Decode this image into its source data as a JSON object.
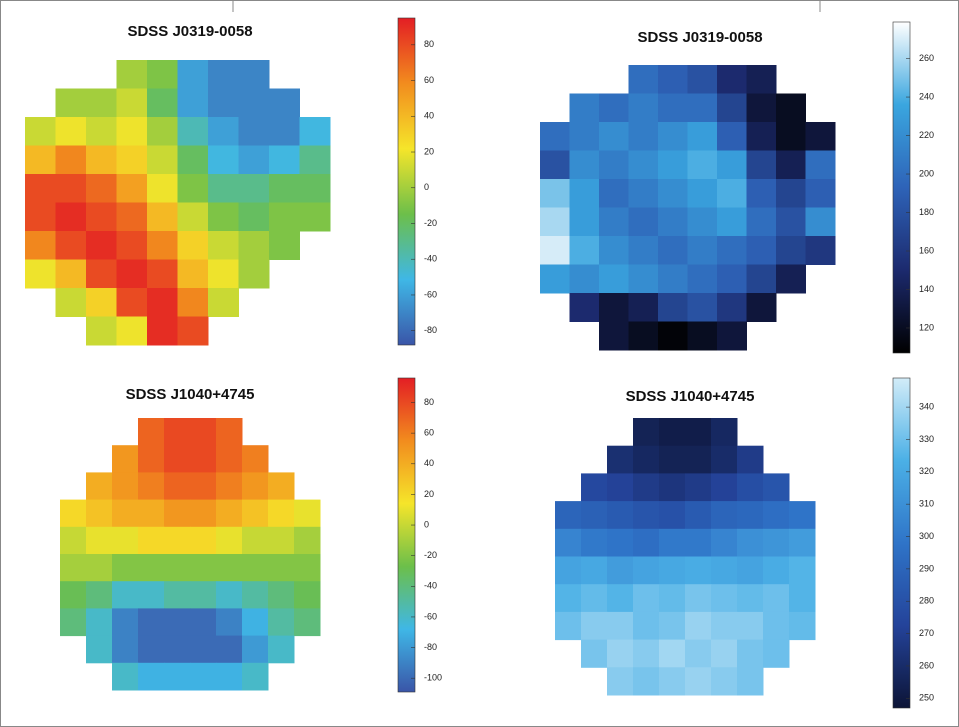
{
  "chart_data": [
    {
      "type": "heatmap",
      "title": "SDSS J0319-0058",
      "colormap": [
        "#3a55a8",
        "#3fb7e6",
        "#6cbf4a",
        "#f5e52a",
        "#f28c1e",
        "#e31e24"
      ],
      "clim": [
        -88,
        95
      ],
      "cticks": [
        80,
        60,
        40,
        20,
        0,
        -20,
        -40,
        -60,
        -80
      ],
      "z": [
        [
          null,
          null,
          null,
          0,
          -10,
          -60,
          -70,
          -70,
          null,
          null
        ],
        [
          null,
          0,
          0,
          10,
          -20,
          -60,
          -70,
          -70,
          -70,
          null
        ],
        [
          10,
          20,
          10,
          20,
          0,
          -40,
          -60,
          -70,
          -70,
          -50
        ],
        [
          40,
          60,
          40,
          30,
          10,
          -20,
          -50,
          -60,
          -50,
          -30
        ],
        [
          80,
          80,
          70,
          50,
          20,
          -10,
          -30,
          -30,
          -20,
          -20
        ],
        [
          80,
          90,
          80,
          70,
          40,
          10,
          -10,
          -20,
          -10,
          -10
        ],
        [
          60,
          80,
          90,
          80,
          60,
          30,
          10,
          0,
          -10,
          null
        ],
        [
          20,
          40,
          80,
          90,
          80,
          40,
          20,
          0,
          null,
          null
        ],
        [
          null,
          10,
          30,
          80,
          90,
          60,
          10,
          null,
          null,
          null
        ],
        [
          null,
          null,
          10,
          20,
          90,
          80,
          null,
          null,
          null,
          null
        ]
      ]
    },
    {
      "type": "heatmap",
      "title": "SDSS J0319-0058",
      "colormap": [
        "#000000",
        "#1c2a6e",
        "#2e63b8",
        "#3aa6df",
        "#ffffff"
      ],
      "clim": [
        107,
        279
      ],
      "cticks": [
        260,
        240,
        220,
        200,
        180,
        160,
        140,
        120
      ],
      "z": [
        [
          null,
          null,
          null,
          200,
          190,
          180,
          150,
          140,
          null,
          null
        ],
        [
          null,
          210,
          200,
          210,
          200,
          200,
          170,
          130,
          120,
          null
        ],
        [
          200,
          210,
          220,
          210,
          220,
          230,
          190,
          140,
          120,
          130
        ],
        [
          180,
          220,
          210,
          220,
          230,
          240,
          230,
          170,
          140,
          200
        ],
        [
          250,
          230,
          200,
          210,
          220,
          230,
          240,
          190,
          170,
          190
        ],
        [
          260,
          230,
          210,
          200,
          210,
          220,
          230,
          200,
          180,
          220
        ],
        [
          270,
          240,
          220,
          210,
          200,
          210,
          200,
          190,
          170,
          160
        ],
        [
          230,
          220,
          230,
          220,
          210,
          200,
          190,
          170,
          140,
          null
        ],
        [
          null,
          150,
          130,
          140,
          170,
          180,
          160,
          130,
          null,
          null
        ],
        [
          null,
          null,
          130,
          120,
          110,
          120,
          130,
          null,
          null,
          null
        ]
      ]
    },
    {
      "type": "heatmap",
      "title": "SDSS J1040+4745",
      "colormap": [
        "#3a55a8",
        "#3fb7e6",
        "#6cbf4a",
        "#f5e52a",
        "#f28c1e",
        "#e31e24"
      ],
      "clim": [
        -109,
        96
      ],
      "cticks": [
        80,
        60,
        40,
        20,
        0,
        -20,
        -40,
        -60,
        -80,
        -100
      ],
      "z": [
        [
          null,
          null,
          null,
          70,
          80,
          80,
          70,
          null,
          null,
          null
        ],
        [
          null,
          null,
          50,
          70,
          80,
          80,
          70,
          60,
          null,
          null
        ],
        [
          null,
          40,
          50,
          60,
          70,
          70,
          60,
          50,
          40,
          null
        ],
        [
          20,
          30,
          40,
          40,
          50,
          50,
          40,
          30,
          20,
          10
        ],
        [
          0,
          10,
          10,
          20,
          20,
          20,
          10,
          0,
          0,
          -10
        ],
        [
          -10,
          -10,
          -20,
          -20,
          -20,
          -20,
          -20,
          -20,
          -20,
          -20
        ],
        [
          -30,
          -40,
          -60,
          -60,
          -50,
          -50,
          -60,
          -50,
          -40,
          -30
        ],
        [
          -40,
          -60,
          -90,
          -100,
          -100,
          -100,
          -90,
          -70,
          -50,
          -40
        ],
        [
          null,
          -60,
          -90,
          -100,
          -100,
          -100,
          -100,
          -80,
          -60,
          null
        ],
        [
          null,
          null,
          -60,
          -70,
          -70,
          -70,
          -70,
          -60,
          null,
          null
        ]
      ]
    },
    {
      "type": "heatmap",
      "title": "SDSS J1040+4745",
      "colormap": [
        "#0c1436",
        "#24439a",
        "#2f74c8",
        "#4bb0e6",
        "#d2ecf8"
      ],
      "clim": [
        247,
        349
      ],
      "cticks": [
        340,
        330,
        320,
        310,
        300,
        290,
        280,
        270,
        260,
        250
      ],
      "z": [
        [
          null,
          null,
          null,
          255,
          252,
          252,
          258,
          null,
          null,
          null
        ],
        [
          null,
          null,
          262,
          258,
          255,
          255,
          260,
          268,
          null,
          null
        ],
        [
          null,
          275,
          272,
          268,
          265,
          268,
          272,
          278,
          282,
          null
        ],
        [
          290,
          288,
          285,
          282,
          280,
          285,
          290,
          292,
          295,
          298
        ],
        [
          305,
          300,
          298,
          295,
          300,
          300,
          305,
          310,
          312,
          315
        ],
        [
          318,
          320,
          315,
          318,
          320,
          322,
          320,
          318,
          322,
          325
        ],
        [
          325,
          328,
          325,
          330,
          328,
          332,
          330,
          328,
          330,
          325
        ],
        [
          330,
          335,
          335,
          330,
          332,
          338,
          335,
          335,
          330,
          328
        ],
        [
          null,
          332,
          338,
          335,
          340,
          335,
          338,
          332,
          330,
          null
        ],
        [
          null,
          null,
          335,
          332,
          335,
          338,
          335,
          332,
          null,
          null
        ]
      ]
    }
  ]
}
